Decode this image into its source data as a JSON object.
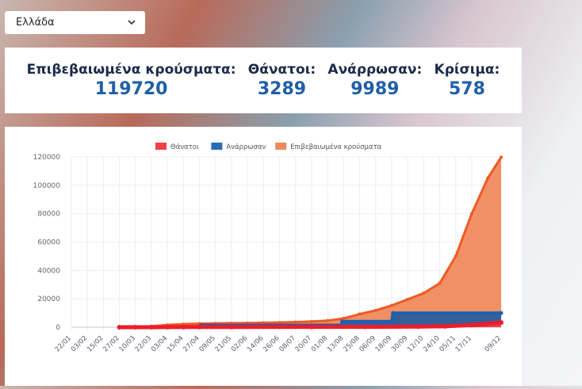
{
  "country_select": {
    "value": "Ελλάδα"
  },
  "stats": [
    {
      "label": "Επιβεβαιωμένα κρούσματα:",
      "value": "119720"
    },
    {
      "label": "Θάνατοι:",
      "value": "3289"
    },
    {
      "label": "Ανάρρωσαν:",
      "value": "9989"
    },
    {
      "label": "Κρίσιμα:",
      "value": "578"
    }
  ],
  "chart_data": {
    "type": "area",
    "legend": [
      {
        "name": "Θάνατοι",
        "color": "#f0404a"
      },
      {
        "name": "Ανάρρωσαν",
        "color": "#2a6db5"
      },
      {
        "name": "Επιβεβαιωμένα κρούσματα",
        "color": "#f08a5d"
      }
    ],
    "legend_position": "top",
    "y_ticks": [
      "0",
      "20000",
      "40000",
      "60000",
      "80000",
      "100000",
      "120000"
    ],
    "ylim": [
      0,
      120000
    ],
    "x_labels": [
      "22/01",
      "03/02",
      "15/02",
      "27/02",
      "10/03",
      "22/03",
      "03/04",
      "15/04",
      "27/04",
      "09/05",
      "21/05",
      "02/06",
      "14/06",
      "26/06",
      "08/07",
      "20/07",
      "01/08",
      "13/08",
      "25/08",
      "06/09",
      "18/09",
      "30/09",
      "12/10",
      "24/10",
      "05/11",
      "17/11",
      "09/12"
    ],
    "x_days": [
      0,
      12,
      24,
      36,
      48,
      60,
      72,
      84,
      96,
      108,
      120,
      132,
      144,
      156,
      168,
      180,
      192,
      204,
      216,
      228,
      240,
      252,
      264,
      276,
      288,
      300,
      322
    ],
    "series": [
      {
        "name": "Επιβεβαιωμένα κρούσματα",
        "days": [
          36,
          48,
          60,
          72,
          84,
          96,
          108,
          120,
          132,
          144,
          156,
          168,
          180,
          192,
          204,
          216,
          228,
          240,
          252,
          264,
          276,
          288,
          300,
          312,
          322
        ],
        "values": [
          1,
          89,
          624,
          1613,
          2192,
          2534,
          2710,
          2853,
          2952,
          3121,
          3343,
          3622,
          4007,
          4587,
          6177,
          9280,
          11832,
          15318,
          19613,
          24000,
          31000,
          50000,
          80000,
          105000,
          119720
        ]
      },
      {
        "name": "Ανάρρωσαν",
        "days": [
          36,
          96,
          97,
          202,
          203,
          240,
          241,
          322
        ],
        "values": [
          0,
          0,
          1374,
          1374,
          4000,
          4000,
          9989,
          9989
        ]
      },
      {
        "name": "Θάνατοι",
        "days": [
          36,
          48,
          60,
          72,
          84,
          96,
          120,
          180,
          220,
          260,
          280,
          300,
          322
        ],
        "values": [
          0,
          1,
          17,
          68,
          101,
          136,
          165,
          200,
          250,
          400,
          600,
          1500,
          3289
        ]
      }
    ]
  }
}
